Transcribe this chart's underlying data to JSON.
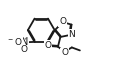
{
  "bg_color": "#ffffff",
  "line_color": "#1a1a1a",
  "bond_width": 1.3,
  "font_size": 6.5,
  "figsize": [
    1.35,
    0.82
  ],
  "dpi": 100,
  "xlim": [
    0,
    10
  ],
  "ylim": [
    0,
    6.1
  ]
}
